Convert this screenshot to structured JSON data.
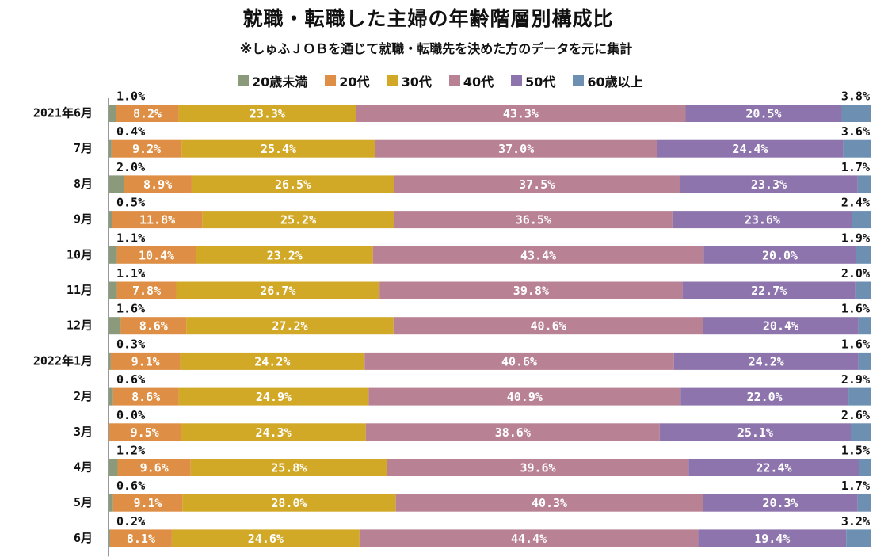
{
  "chart_data": {
    "type": "bar",
    "orientation": "horizontal-stacked-100",
    "title": "就職・転職した主婦の年齢階層別構成比",
    "subtitle": "※しゅふＪＯＢを通じて就職・転職先を決めた方のデータを元に集計",
    "xlabel": "",
    "ylabel": "",
    "xlim": [
      0,
      100
    ],
    "legend_position": "top-center",
    "categories": [
      "2021年6月",
      "7月",
      "8月",
      "9月",
      "10月",
      "11月",
      "12月",
      "2022年1月",
      "2月",
      "3月",
      "4月",
      "5月",
      "6月"
    ],
    "series": [
      {
        "name": "20歳未満",
        "color": "#8a9a7b",
        "values": [
          1.0,
          0.4,
          2.0,
          0.5,
          1.1,
          1.1,
          1.6,
          0.3,
          0.6,
          0.0,
          1.2,
          0.6,
          0.2
        ]
      },
      {
        "name": "20代",
        "color": "#de8f45",
        "values": [
          8.2,
          9.2,
          8.9,
          11.8,
          10.4,
          7.8,
          8.6,
          9.1,
          8.6,
          9.5,
          9.6,
          9.1,
          8.1
        ]
      },
      {
        "name": "30代",
        "color": "#d2a827",
        "values": [
          23.3,
          25.4,
          26.5,
          25.2,
          23.2,
          26.7,
          27.2,
          24.2,
          24.9,
          24.3,
          25.8,
          28.0,
          24.6
        ]
      },
      {
        "name": "40代",
        "color": "#b98294",
        "values": [
          43.3,
          37.0,
          37.5,
          36.5,
          43.4,
          39.8,
          40.6,
          40.6,
          40.9,
          38.6,
          39.6,
          40.3,
          44.4
        ]
      },
      {
        "name": "50代",
        "color": "#8e74ad",
        "values": [
          20.5,
          24.4,
          23.3,
          23.6,
          20.0,
          22.7,
          20.4,
          24.2,
          22.0,
          25.1,
          22.4,
          20.3,
          19.4
        ]
      },
      {
        "name": "60歳以上",
        "color": "#6c8fb2",
        "values": [
          3.8,
          3.6,
          1.7,
          2.4,
          1.9,
          2.0,
          1.6,
          1.6,
          2.9,
          2.6,
          1.5,
          1.7,
          3.2
        ]
      }
    ],
    "value_suffix": "%"
  }
}
